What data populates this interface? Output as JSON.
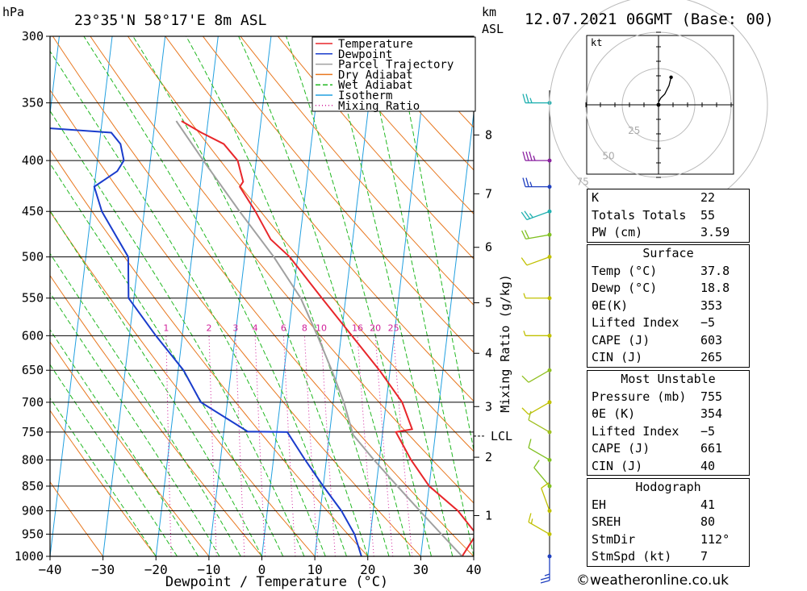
{
  "header": {
    "pressure_unit": "hPa",
    "location": "23°35'N 58°17'E 8m ASL",
    "height_unit": "km",
    "height_unit2": "ASL",
    "datetime": "12.07.2021 06GMT (Base: 00)"
  },
  "chart_data": {
    "type": "line",
    "xlabel": "Dewpoint / Temperature (°C)",
    "ylabel": "Mixing Ratio (g/kg)",
    "x_ticks": [
      -40,
      -30,
      -20,
      -10,
      0,
      10,
      20,
      30,
      40
    ],
    "x_tick_labels": [
      "−40",
      "−30",
      "−20",
      "−10",
      "0",
      "10",
      "20",
      "30",
      "40"
    ],
    "pressure_levels": [
      300,
      350,
      400,
      450,
      500,
      550,
      600,
      650,
      700,
      750,
      800,
      850,
      900,
      950,
      1000
    ],
    "pressure_labels": [
      "300",
      "350",
      "400",
      "450",
      "500",
      "550",
      "600",
      "650",
      "700",
      "750",
      "800",
      "850",
      "900",
      "950",
      "1000"
    ],
    "xlim": [
      -40,
      40
    ],
    "ylim": [
      1000,
      300
    ],
    "skew_note": "skewed temperature axis",
    "km_levels": [
      {
        "km": "1",
        "p": 910
      },
      {
        "km": "2",
        "p": 795
      },
      {
        "km": "3",
        "p": 707
      },
      {
        "km": "4",
        "p": 625
      },
      {
        "km": "5",
        "p": 556
      },
      {
        "km": "6",
        "p": 489
      },
      {
        "km": "7",
        "p": 432
      },
      {
        "km": "8",
        "p": 377
      }
    ],
    "lcl": {
      "label": "LCL",
      "p": 757
    },
    "mixing_ratio_labels": [
      "1",
      "2",
      "3",
      "4",
      "6",
      "8",
      "10",
      "16",
      "20",
      "25"
    ],
    "mixing_ratio_values": [
      1,
      2,
      3,
      4,
      6,
      8,
      10,
      16,
      20,
      25
    ],
    "legend": [
      "Temperature",
      "Dewpoint",
      "Parcel Trajectory",
      "Dry Adiabat",
      "Wet Adiabat",
      "Isotherm",
      "Mixing Ratio"
    ],
    "colors": {
      "temperature": "#e8262a",
      "dewpoint": "#1a3ccc",
      "parcel": "#a0a0a0",
      "dry_adiabat": "#e87820",
      "wet_adiabat": "#22b822",
      "isotherm": "#22a0e0",
      "mixing_ratio": "#d0209a"
    },
    "series": [
      {
        "name": "Temperature",
        "points": [
          [
            1000,
            37.8
          ],
          [
            950,
            40
          ],
          [
            900,
            36
          ],
          [
            850,
            30
          ],
          [
            800,
            26
          ],
          [
            750,
            22.5
          ],
          [
            745,
            25.5
          ],
          [
            700,
            23
          ],
          [
            650,
            18
          ],
          [
            600,
            12
          ],
          [
            550,
            5.5
          ],
          [
            500,
            -1.5
          ],
          [
            480,
            -5.5
          ],
          [
            450,
            -9
          ],
          [
            425,
            -12.5
          ],
          [
            420,
            -12
          ],
          [
            400,
            -13.5
          ],
          [
            385,
            -16.5
          ],
          [
            375,
            -21
          ],
          [
            365,
            -25
          ]
        ]
      },
      {
        "name": "Dewpoint",
        "points": [
          [
            1000,
            18.8
          ],
          [
            950,
            17
          ],
          [
            900,
            14
          ],
          [
            850,
            10
          ],
          [
            800,
            6
          ],
          [
            750,
            2
          ],
          [
            749,
            -5.5
          ],
          [
            700,
            -15
          ],
          [
            650,
            -19
          ],
          [
            600,
            -25
          ],
          [
            550,
            -31
          ],
          [
            500,
            -32
          ],
          [
            450,
            -38
          ],
          [
            425,
            -40
          ],
          [
            410,
            -36
          ],
          [
            400,
            -35
          ],
          [
            385,
            -36
          ],
          [
            375,
            -38
          ],
          [
            368,
            -60
          ],
          [
            355,
            -80
          ]
        ]
      },
      {
        "name": "Parcel Trajectory",
        "points": [
          [
            1000,
            37.8
          ],
          [
            950,
            33.4
          ],
          [
            900,
            28.8
          ],
          [
            850,
            24
          ],
          [
            800,
            19
          ],
          [
            755,
            14.5
          ],
          [
            700,
            12
          ],
          [
            650,
            9
          ],
          [
            600,
            5.5
          ],
          [
            550,
            1.5
          ],
          [
            500,
            -4.5
          ],
          [
            450,
            -12
          ],
          [
            400,
            -20
          ],
          [
            365,
            -26
          ]
        ]
      }
    ],
    "wind_barbs": [
      {
        "p": 350,
        "dir": 270,
        "kt": 25,
        "color": "#20b0b0"
      },
      {
        "p": 400,
        "dir": 270,
        "kt": 35,
        "color": "#8a20a0"
      },
      {
        "p": 425,
        "dir": 270,
        "kt": 25,
        "color": "#2040c0"
      },
      {
        "p": 450,
        "dir": 250,
        "kt": 25,
        "color": "#20b0b0"
      },
      {
        "p": 475,
        "dir": 260,
        "kt": 20,
        "color": "#80c020"
      },
      {
        "p": 500,
        "dir": 250,
        "kt": 10,
        "color": "#c0c000"
      },
      {
        "p": 550,
        "dir": 270,
        "kt": 5,
        "color": "#c0c000"
      },
      {
        "p": 600,
        "dir": 270,
        "kt": 5,
        "color": "#c0c000"
      },
      {
        "p": 650,
        "dir": 240,
        "kt": 10,
        "color": "#90c020"
      },
      {
        "p": 700,
        "dir": 240,
        "kt": 10,
        "color": "#c0c000"
      },
      {
        "p": 750,
        "dir": 300,
        "kt": 10,
        "color": "#a0c020"
      },
      {
        "p": 800,
        "dir": 300,
        "kt": 10,
        "color": "#80c020"
      },
      {
        "p": 850,
        "dir": 320,
        "kt": 10,
        "color": "#80c020"
      },
      {
        "p": 900,
        "dir": 340,
        "kt": 10,
        "color": "#c0c000"
      },
      {
        "p": 950,
        "dir": 300,
        "kt": 15,
        "color": "#c0c000"
      },
      {
        "p": 1000,
        "dir": 180,
        "kt": 25,
        "color": "#2040c0"
      }
    ]
  },
  "hodograph": {
    "unit": "kt",
    "rings": [
      25,
      50,
      75
    ],
    "ring_labels": [
      "25",
      "50",
      "75"
    ],
    "trace": [
      [
        0,
        0
      ],
      [
        1,
        2
      ],
      [
        3,
        4
      ],
      [
        5,
        8
      ],
      [
        6,
        12
      ]
    ]
  },
  "indices": [
    {
      "label": "K",
      "value": "22"
    },
    {
      "label": "Totals Totals",
      "value": "55"
    },
    {
      "label": "PW (cm)",
      "value": "3.59"
    }
  ],
  "surface": {
    "title": "Surface",
    "rows": [
      {
        "label": "Temp (°C)",
        "value": "37.8"
      },
      {
        "label": "Dewp (°C)",
        "value": "18.8"
      },
      {
        "label": "θE(K)",
        "value": "353"
      },
      {
        "label": "Lifted Index",
        "value": "−5"
      },
      {
        "label": "CAPE (J)",
        "value": "603"
      },
      {
        "label": "CIN (J)",
        "value": "265"
      }
    ]
  },
  "most_unstable": {
    "title": "Most Unstable",
    "rows": [
      {
        "label": "Pressure (mb)",
        "value": "755"
      },
      {
        "label": "θE (K)",
        "value": "354"
      },
      {
        "label": "Lifted Index",
        "value": "−5"
      },
      {
        "label": "CAPE (J)",
        "value": "661"
      },
      {
        "label": "CIN (J)",
        "value": "40"
      }
    ]
  },
  "hodograph_box": {
    "title": "Hodograph",
    "rows": [
      {
        "label": "EH",
        "value": "41"
      },
      {
        "label": "SREH",
        "value": "80"
      },
      {
        "label": "StmDir",
        "value": "112°"
      },
      {
        "label": "StmSpd (kt)",
        "value": "7"
      }
    ]
  },
  "credit": "©weatheronline.co.uk"
}
